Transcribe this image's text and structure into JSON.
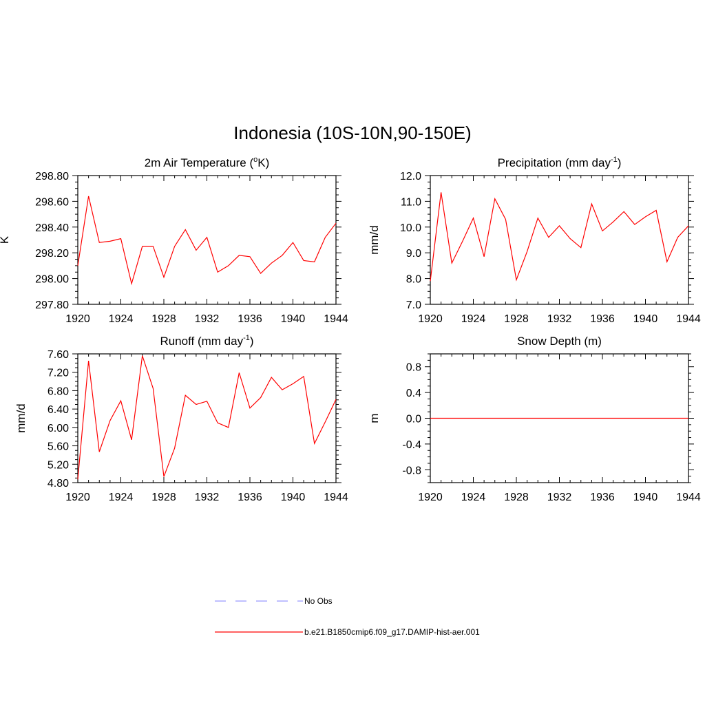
{
  "figure": {
    "title": "Indonesia (10S-10N,90-150E)"
  },
  "colors": {
    "model_line": "#ff0000",
    "obs_line": "#9999ff",
    "frame": "#000000"
  },
  "legend": {
    "entries": [
      {
        "label": "No Obs",
        "style": "dashed",
        "color": "#9999ff"
      },
      {
        "label": "b.e21.B1850cmip6.f09_g17.DAMIP-hist-aer.001",
        "style": "solid",
        "color": "#ff0000"
      }
    ]
  },
  "chart_data": [
    {
      "type": "line",
      "title": "2m Air Temperature (",
      "title_sup": "o",
      "title_after": "K)",
      "ylabel": "K",
      "xlim": [
        1920,
        1944
      ],
      "ylim": [
        297.8,
        298.8
      ],
      "xticks": [
        1920,
        1924,
        1928,
        1932,
        1936,
        1940,
        1944
      ],
      "yticks": [
        "297.80",
        "298.00",
        "298.20",
        "298.40",
        "298.60",
        "298.80"
      ],
      "x": [
        1920,
        1921,
        1922,
        1923,
        1924,
        1925,
        1926,
        1927,
        1928,
        1929,
        1930,
        1931,
        1932,
        1933,
        1934,
        1935,
        1936,
        1937,
        1938,
        1939,
        1940,
        1941,
        1942,
        1943,
        1944
      ],
      "series": [
        {
          "values": [
            298.1,
            298.64,
            298.28,
            298.29,
            298.31,
            297.96,
            298.25,
            298.25,
            298.01,
            298.25,
            298.38,
            298.22,
            298.32,
            298.05,
            298.1,
            298.18,
            298.17,
            298.04,
            298.12,
            298.18,
            298.28,
            298.14,
            298.13,
            298.32,
            298.43
          ]
        }
      ]
    },
    {
      "type": "line",
      "title": "Precipitation (mm day",
      "title_sup": "-1",
      "title_after": ")",
      "ylabel": "mm/d",
      "xlim": [
        1920,
        1944
      ],
      "ylim": [
        7.0,
        12.0
      ],
      "xticks": [
        1920,
        1924,
        1928,
        1932,
        1936,
        1940,
        1944
      ],
      "yticks": [
        "7.0",
        "8.0",
        "9.0",
        "10.0",
        "11.0",
        "12.0"
      ],
      "x": [
        1920,
        1921,
        1922,
        1923,
        1924,
        1925,
        1926,
        1927,
        1928,
        1929,
        1930,
        1931,
        1932,
        1933,
        1934,
        1935,
        1936,
        1937,
        1938,
        1939,
        1940,
        1941,
        1942,
        1943,
        1944
      ],
      "series": [
        {
          "values": [
            7.9,
            11.35,
            8.6,
            9.45,
            10.35,
            8.85,
            11.1,
            10.3,
            7.95,
            9.05,
            10.35,
            9.6,
            10.05,
            9.55,
            9.2,
            10.9,
            9.85,
            10.2,
            10.6,
            10.1,
            10.4,
            10.65,
            8.65,
            9.6,
            10.05
          ]
        }
      ]
    },
    {
      "type": "line",
      "title": "Runoff (mm day",
      "title_sup": "-1",
      "title_after": ")",
      "ylabel": "mm/d",
      "xlim": [
        1920,
        1944
      ],
      "ylim": [
        4.8,
        7.6
      ],
      "xticks": [
        1920,
        1924,
        1928,
        1932,
        1936,
        1940,
        1944
      ],
      "yticks": [
        "4.80",
        "5.20",
        "5.60",
        "6.00",
        "6.40",
        "6.80",
        "7.20",
        "7.60"
      ],
      "x": [
        1920,
        1921,
        1922,
        1923,
        1924,
        1925,
        1926,
        1927,
        1928,
        1929,
        1930,
        1931,
        1932,
        1933,
        1934,
        1935,
        1936,
        1937,
        1938,
        1939,
        1940,
        1941,
        1942,
        1943,
        1944
      ],
      "series": [
        {
          "values": [
            4.87,
            7.45,
            5.47,
            6.15,
            6.58,
            5.73,
            7.56,
            6.85,
            4.93,
            5.55,
            6.7,
            6.5,
            6.57,
            6.1,
            6.0,
            7.19,
            6.42,
            6.65,
            7.09,
            6.82,
            6.95,
            7.11,
            5.65,
            6.12,
            6.61
          ]
        }
      ]
    },
    {
      "type": "line",
      "title": "Snow Depth (m)",
      "title_sup": "",
      "title_after": "",
      "ylabel": "m",
      "xlim": [
        1920,
        1944
      ],
      "ylim": [
        -1.0,
        1.0
      ],
      "xticks": [
        1920,
        1924,
        1928,
        1932,
        1936,
        1940,
        1944
      ],
      "yticks": [
        "-0.8",
        "-0.4",
        "0.0",
        "0.4",
        "0.8"
      ],
      "ytick_values": [
        -0.8,
        -0.4,
        0.0,
        0.4,
        0.8
      ],
      "x": [
        1920,
        1944
      ],
      "series": [
        {
          "values": [
            0.0,
            0.0
          ]
        }
      ]
    }
  ]
}
